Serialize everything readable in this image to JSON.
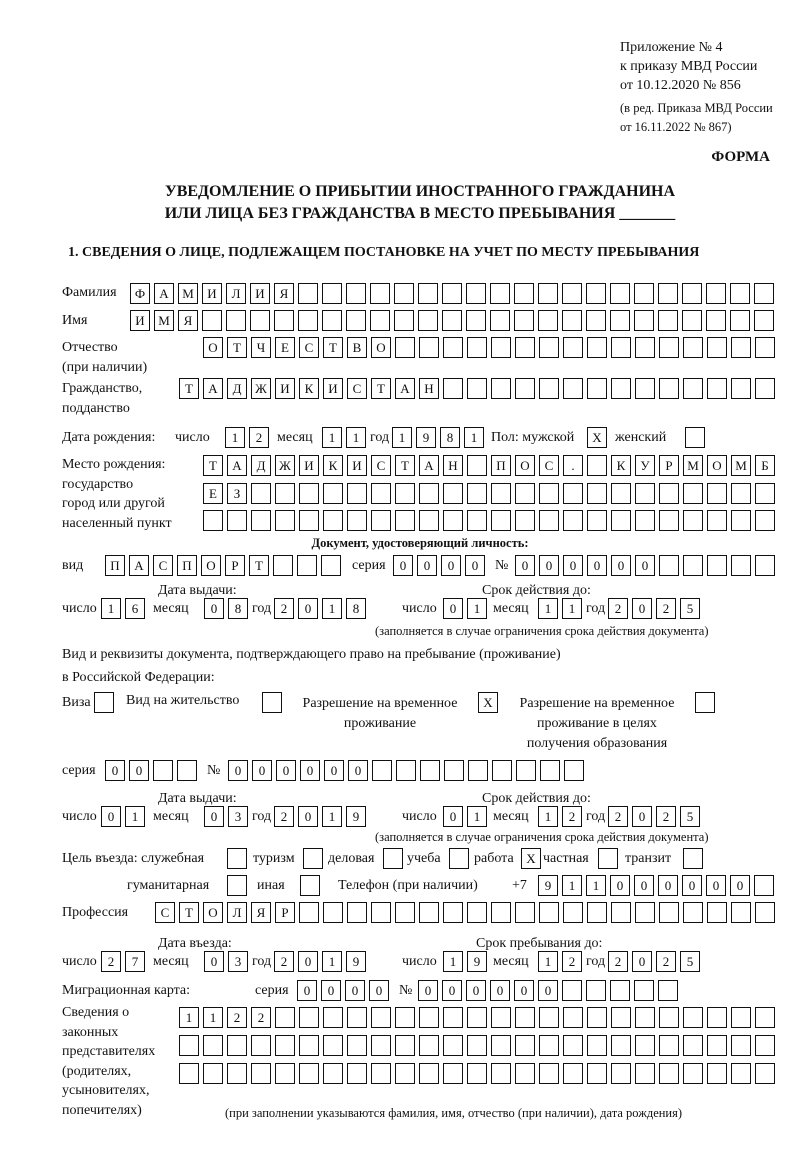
{
  "header": {
    "appendix": [
      "Приложение № 4",
      "к приказу МВД России",
      "от 10.12.2020 № 856"
    ],
    "revision": [
      "(в ред. Приказа МВД России",
      "от 16.11.2022 № 867)"
    ],
    "form_label": "ФОРМА",
    "title_line1": "УВЕДОМЛЕНИЕ О ПРИБЫТИИ ИНОСТРАННОГО ГРАЖДАНИНА",
    "title_line2": "ИЛИ ЛИЦА БЕЗ ГРАЖДАНСТВА В МЕСТО ПРЕБЫВАНИЯ _______",
    "section1": "1. СВЕДЕНИЯ О ЛИЦЕ, ПОДЛЕЖАЩЕМ ПОСТАНОВКЕ НА УЧЕТ ПО МЕСТУ ПРЕБЫВАНИЯ"
  },
  "labels": {
    "surname": "Фамилия",
    "name": "Имя",
    "patronymic": "Отчество",
    "patronymic2": "(при наличии)",
    "citizenship": "Гражданство,",
    "citizenship2": "подданство",
    "birth_date": "Дата рождения:",
    "day": "число",
    "month": "месяц",
    "year": "год",
    "sex": "Пол: мужской",
    "female": "женский",
    "birthplace": [
      "Место рождения:",
      "государство",
      "город или другой",
      "населенный пункт"
    ],
    "id_doc": "Документ, удостоверяющий личность:",
    "kind": "вид",
    "series": "серия",
    "number": "№",
    "issue_date": "Дата выдачи:",
    "valid_until": "Срок действия до:",
    "validity_note": "(заполняется в случае ограничения срока действия документа)",
    "stay_doc1": "Вид и реквизиты документа, подтверждающего право на пребывание (проживание)",
    "stay_doc2": "в Российской Федерации:",
    "visa": "Виза",
    "residence": "Вид на жительство",
    "temp_res": [
      "Разрешение на временное",
      "проживание"
    ],
    "temp_res_edu": [
      "Разрешение на временное",
      "проживание в целях",
      "получения образования"
    ],
    "purpose": "Цель въезда: служебная",
    "tourism": "туризм",
    "business": "деловая",
    "study": "учеба",
    "work": "работа",
    "private": "частная",
    "transit": "транзит",
    "humanitarian": "гуманитарная",
    "other": "иная",
    "phone": "Телефон (при наличии)",
    "phone_prefix": "+7",
    "profession": "Профессия",
    "entry_date": "Дата въезда:",
    "stay_until": "Срок пребывания до:",
    "migration_card": "Миграционная карта:",
    "representatives": [
      "Сведения о",
      "законных",
      "представителях",
      "(родителях,",
      "усыновителях,",
      "попечителях)"
    ],
    "representatives_note": "(при заполнении указываются фамилия, имя, отчество (при наличии), дата рождения)"
  },
  "values": {
    "surname": "ФАМИЛИЯ",
    "name": "ИМЯ",
    "patronymic": "ОТЧЕСТВО",
    "citizenship": "ТАДЖИКИСТАН",
    "birth_day": "12",
    "birth_month": "11",
    "birth_year": "1981",
    "male": "X",
    "female": "",
    "birthplace1": "ТАДЖИКИСТАН ПОС. КУРМОМБ",
    "birthplace2": "ЕЗ",
    "birthplace3": "",
    "id_kind": "ПАСПОРТ",
    "id_series": "0000",
    "id_number": "000000",
    "id_issue_day": "16",
    "id_issue_month": "08",
    "id_issue_year": "2018",
    "id_valid_day": "01",
    "id_valid_month": "11",
    "id_valid_year": "2025",
    "visa": "",
    "residence": "",
    "temp_res": "X",
    "temp_res_edu": "",
    "stay_series": "00",
    "stay_number": "000000",
    "stay_issue_day": "01",
    "stay_issue_month": "03",
    "stay_issue_year": "2019",
    "stay_valid_day": "01",
    "stay_valid_month": "12",
    "stay_valid_year": "2025",
    "purpose_official": "",
    "purpose_tourism": "",
    "purpose_business": "",
    "purpose_study": "",
    "purpose_work": "X",
    "purpose_private": "",
    "purpose_transit": "",
    "purpose_humanitarian": "",
    "purpose_other": "",
    "phone": "911000000",
    "profession": "СТОЛЯР",
    "entry_day": "27",
    "entry_month": "03",
    "entry_year": "2019",
    "stay_until_day": "19",
    "stay_until_month": "12",
    "stay_until_year": "2025",
    "mig_series": "0000",
    "mig_number": "000000",
    "rep1": "1122",
    "rep2": "",
    "rep3": ""
  }
}
